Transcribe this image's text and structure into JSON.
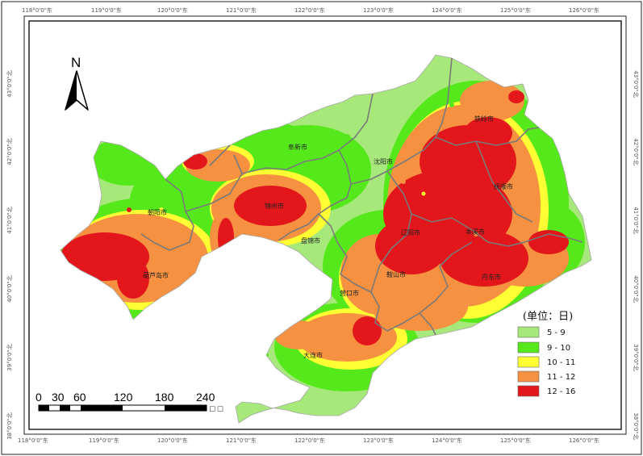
{
  "top_ticks": [
    "118°0'0\"东",
    "119°0'0\"东",
    "120°0'0\"东",
    "121°0'0\"东",
    "122°0'0\"东",
    "123°0'0\"东",
    "124°0'0\"东",
    "125°0'0\"东",
    "126°0'0\"东"
  ],
  "bottom_ticks": [
    "118°0'0\"东",
    "119°0'0\"东",
    "120°0'0\"东",
    "121°0'0\"东",
    "122°0'0\"东",
    "123°0'0\"东",
    "124°0'0\"东",
    "125°0'0\"东",
    "126°0'0\"东"
  ],
  "left_ticks": [
    "43°0'0\"北",
    "42°0'0\"北",
    "41°0'0\"北",
    "40°0'0\"北",
    "39°0'0\"北",
    "38°0'0\"北"
  ],
  "right_ticks": [
    "43°0'0\"北",
    "42°0'0\"北",
    "41°0'0\"北",
    "40°0'0\"北",
    "39°0'0\"北",
    "38°0'0\"北"
  ],
  "north_label": "N",
  "scale_labels": [
    "0",
    "30",
    "60",
    "120",
    "180",
    "240"
  ],
  "scale_unit_glyph": "□ □",
  "legend": {
    "title": "(单位：日)",
    "items": [
      {
        "label": "5 - 9",
        "color": "#a6e87a"
      },
      {
        "label": "9 - 10",
        "color": "#55e81a"
      },
      {
        "label": "10 - 11",
        "color": "#ffff33"
      },
      {
        "label": "11 - 12",
        "color": "#f59140"
      },
      {
        "label": "12 - 16",
        "color": "#e3161b"
      }
    ]
  },
  "cities": [
    {
      "id": "fuxin",
      "name": "阜新市"
    },
    {
      "id": "tieling",
      "name": "铁岭市"
    },
    {
      "id": "shenyang",
      "name": "沈阳市"
    },
    {
      "id": "fushun",
      "name": "抚顺市"
    },
    {
      "id": "chaoyang",
      "name": "朝阳市"
    },
    {
      "id": "jinzhou",
      "name": "锦州市"
    },
    {
      "id": "panjin",
      "name": "盘锦市"
    },
    {
      "id": "liaoyang",
      "name": "辽阳市"
    },
    {
      "id": "benxi",
      "name": "本溪市"
    },
    {
      "id": "huludao",
      "name": "葫芦岛市"
    },
    {
      "id": "anshan",
      "name": "鞍山市"
    },
    {
      "id": "dandong",
      "name": "丹东市"
    },
    {
      "id": "yingkou",
      "name": "营口市"
    },
    {
      "id": "dalian",
      "name": "大连市"
    }
  ]
}
